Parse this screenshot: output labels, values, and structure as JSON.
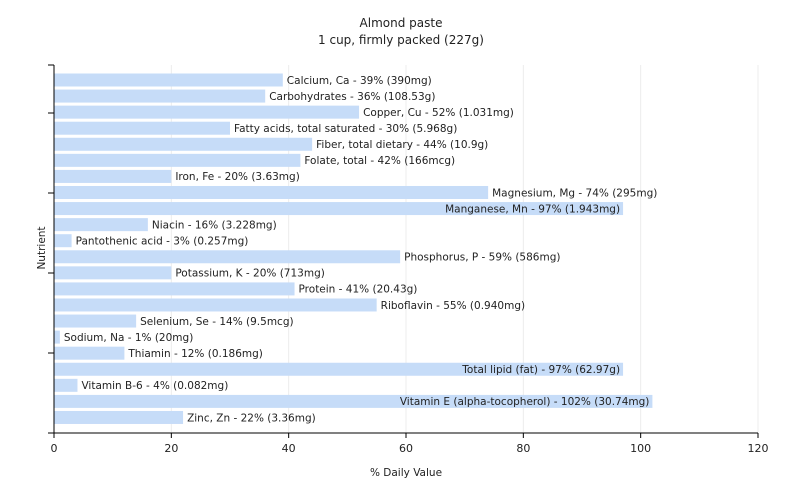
{
  "chart_data": {
    "type": "bar",
    "orientation": "horizontal",
    "title": "Almond paste",
    "subtitle": "1 cup, firmly packed (227g)",
    "xlabel": "% Daily Value",
    "ylabel": "Nutrient",
    "xlim": [
      0,
      120
    ],
    "xticks": [
      "0",
      "20",
      "40",
      "60",
      "80",
      "100",
      "120"
    ],
    "grid": true,
    "bar_color": "#c6dcf8",
    "categories": [
      "Calcium, Ca",
      "Carbohydrates",
      "Copper, Cu",
      "Fatty acids, total saturated",
      "Fiber, total dietary",
      "Folate, total",
      "Iron, Fe",
      "Magnesium, Mg",
      "Manganese, Mn",
      "Niacin",
      "Pantothenic acid",
      "Phosphorus, P",
      "Potassium, K",
      "Protein",
      "Riboflavin",
      "Selenium, Se",
      "Sodium, Na",
      "Thiamin",
      "Total lipid (fat)",
      "Vitamin B-6",
      "Vitamin E (alpha-tocopherol)",
      "Zinc, Zn"
    ],
    "values": [
      39,
      36,
      52,
      30,
      44,
      42,
      20,
      74,
      97,
      16,
      3,
      59,
      20,
      41,
      55,
      14,
      1,
      12,
      97,
      4,
      102,
      22
    ],
    "labels": [
      "Calcium, Ca - 39% (390mg)",
      "Carbohydrates - 36% (108.53g)",
      "Copper, Cu - 52% (1.031mg)",
      "Fatty acids, total saturated - 30% (5.968g)",
      "Fiber, total dietary - 44% (10.9g)",
      "Folate, total - 42% (166mcg)",
      "Iron, Fe - 20% (3.63mg)",
      "Magnesium, Mg - 74% (295mg)",
      "Manganese, Mn - 97% (1.943mg)",
      "Niacin - 16% (3.228mg)",
      "Pantothenic acid - 3% (0.257mg)",
      "Phosphorus, P - 59% (586mg)",
      "Potassium, K - 20% (713mg)",
      "Protein - 41% (20.43g)",
      "Riboflavin - 55% (0.940mg)",
      "Selenium, Se - 14% (9.5mcg)",
      "Sodium, Na - 1% (20mg)",
      "Thiamin - 12% (0.186mg)",
      "Total lipid (fat) - 97% (62.97g)",
      "Vitamin B-6 - 4% (0.082mg)",
      "Vitamin E (alpha-tocopherol) - 102% (30.74mg)",
      "Zinc, Zn - 22% (3.36mg)"
    ]
  }
}
